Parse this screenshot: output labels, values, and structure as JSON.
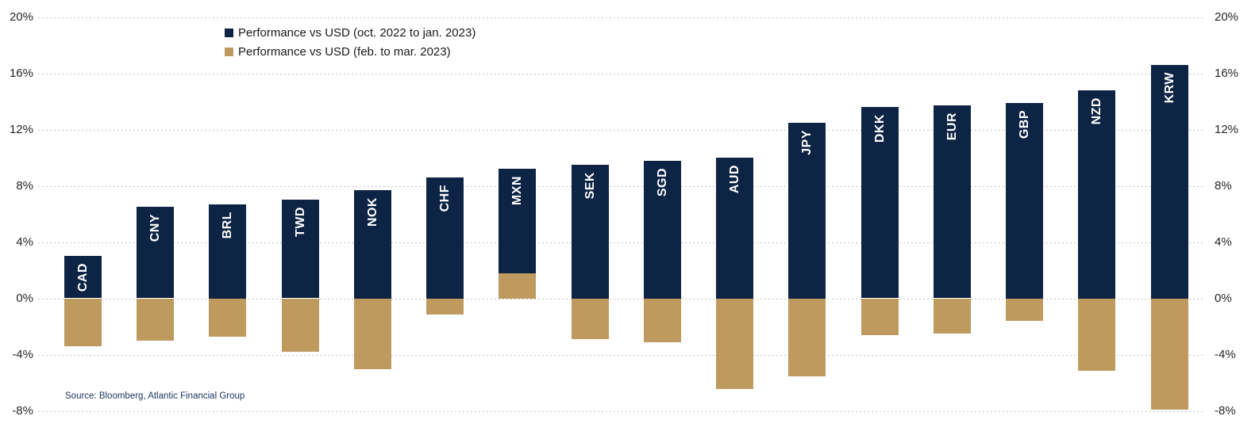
{
  "chart_data": {
    "type": "bar",
    "bar_mode": "overlay",
    "title": "",
    "xlabel": "",
    "ylabel": "",
    "categories": [
      "CAD",
      "CNY",
      "BRL",
      "TWD",
      "NOK",
      "CHF",
      "MXN",
      "SEK",
      "SGD",
      "AUD",
      "JPY",
      "DKK",
      "EUR",
      "GBP",
      "NZD",
      "KRW"
    ],
    "series": [
      {
        "name": "Performance vs USD (oct. 2022 to jan. 2023)",
        "color": "#0d2444",
        "values": [
          3.0,
          6.5,
          6.7,
          7.0,
          7.7,
          8.6,
          9.2,
          9.5,
          9.8,
          10.0,
          12.5,
          13.6,
          13.7,
          13.9,
          14.8,
          16.6
        ]
      },
      {
        "name": "Performance vs USD (feb. to mar. 2023)",
        "color": "#bf9a5e",
        "values": [
          -3.4,
          -3.0,
          -2.7,
          -3.8,
          -5.0,
          -1.1,
          1.8,
          -2.9,
          -3.1,
          -6.4,
          -5.5,
          -2.6,
          -2.5,
          -1.6,
          -5.1,
          -7.9
        ]
      }
    ],
    "ylim": [
      -8,
      20
    ],
    "yticks": [
      20,
      16,
      12,
      8,
      4,
      0,
      -4,
      -8
    ],
    "ytick_suffix": "%",
    "dual_axis_labels": true,
    "grid": "horizontal-dotted",
    "legend_position": "top-left"
  },
  "legend": {
    "items": [
      {
        "label": "Performance vs USD (oct. 2022 to jan. 2023)",
        "color": "#0d2444"
      },
      {
        "label": "Performance vs USD (feb. to mar. 2023)",
        "color": "#bf9a5e"
      }
    ]
  },
  "source_note": "Source: Bloomberg, Atlantic Financial Group",
  "colors": {
    "navy": "#0d2444",
    "tan": "#bf9a5e",
    "gridline": "#c2c2c2",
    "axis_text": "#262626",
    "source_text": "#1f3864",
    "bar_label_text": "#ffffff"
  }
}
